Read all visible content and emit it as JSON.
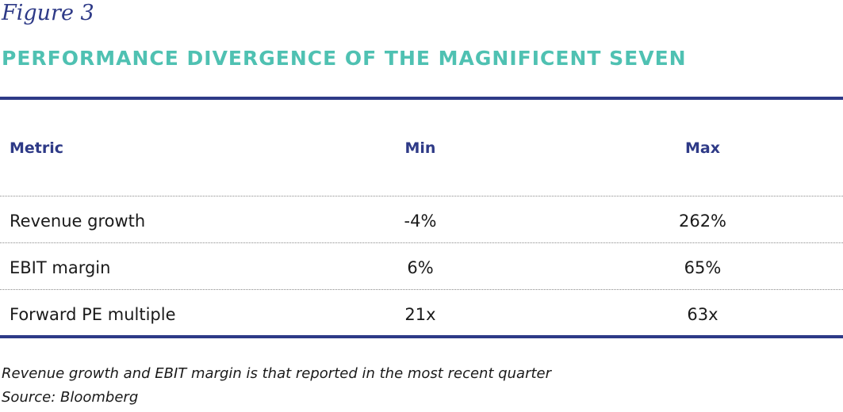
{
  "figure_label": "Figure 3",
  "title": "PERFORMANCE DIVERGENCE OF THE MAGNIFICENT SEVEN",
  "table": {
    "headers": [
      "Metric",
      "Min",
      "Max"
    ],
    "rows": [
      [
        "Revenue growth",
        "-4%",
        "262%"
      ],
      [
        "EBIT margin",
        "6%",
        "65%"
      ],
      [
        "Forward PE multiple",
        "21x",
        "63x"
      ]
    ]
  },
  "footnotes": {
    "note": "Revenue growth and EBIT margin is that reported in the most recent quarter",
    "source": "Source: Bloomberg"
  },
  "colors": {
    "navy": "#2e3a87",
    "teal": "#4fc1b2"
  }
}
